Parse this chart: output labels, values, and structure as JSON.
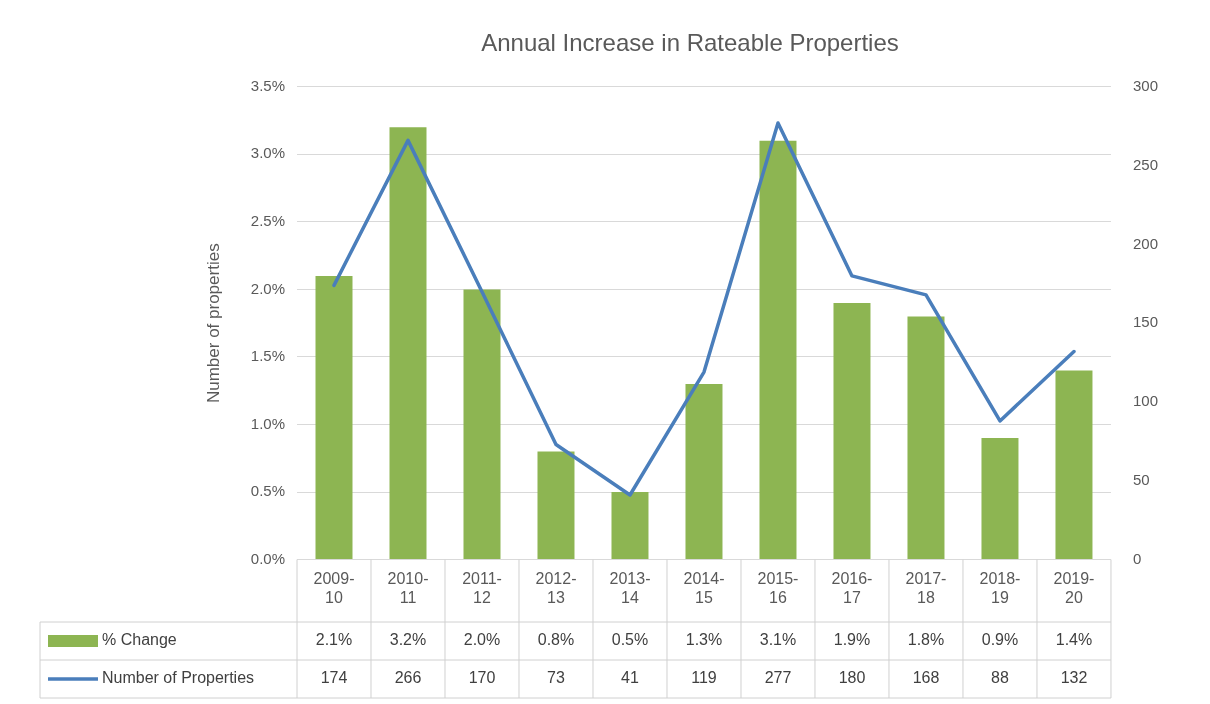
{
  "chart_data": {
    "type": "bar",
    "title": "Annual Increase in Rateable Properties",
    "ylabel": "Number of properties",
    "categories": [
      "2009-10",
      "2010-11",
      "2011-12",
      "2012-13",
      "2013-14",
      "2014-15",
      "2015-16",
      "2016-17",
      "2017-18",
      "2018-19",
      "2019-20"
    ],
    "series": [
      {
        "name": "% Change",
        "color": "#8db552",
        "values": [
          2.1,
          3.2,
          2.0,
          0.8,
          0.5,
          1.3,
          3.1,
          1.9,
          1.8,
          0.9,
          1.4
        ],
        "value_labels": [
          "2.1%",
          "3.2%",
          "2.0%",
          "0.8%",
          "0.5%",
          "1.3%",
          "3.1%",
          "1.9%",
          "1.8%",
          "0.9%",
          "1.4%"
        ]
      },
      {
        "name": "Number of Properties",
        "type": "line",
        "axis": "y2",
        "color": "#4a7ebb",
        "values": [
          174,
          266,
          170,
          73,
          41,
          119,
          277,
          180,
          168,
          88,
          132
        ],
        "value_labels": [
          "174",
          "266",
          "170",
          "73",
          "41",
          "119",
          "277",
          "180",
          "168",
          "88",
          "132"
        ]
      }
    ],
    "ylim": [
      0,
      3.5
    ],
    "yticks": [
      {
        "value": 0,
        "label": "0.0%"
      },
      {
        "value": 0.5,
        "label": "0.5%"
      },
      {
        "value": 1,
        "label": "1.0%"
      },
      {
        "value": 1.5,
        "label": "1.5%"
      },
      {
        "value": 2,
        "label": "2.0%"
      },
      {
        "value": 2.5,
        "label": "2.5%"
      },
      {
        "value": 3,
        "label": "3.0%"
      },
      {
        "value": 3.5,
        "label": "3.5%"
      }
    ],
    "y2lim": [
      0,
      300
    ],
    "y2ticks": [
      0,
      50,
      100,
      150,
      200,
      250,
      300
    ],
    "grid": "y",
    "legend": "bottom",
    "marker": "none",
    "line_style": "solid"
  }
}
